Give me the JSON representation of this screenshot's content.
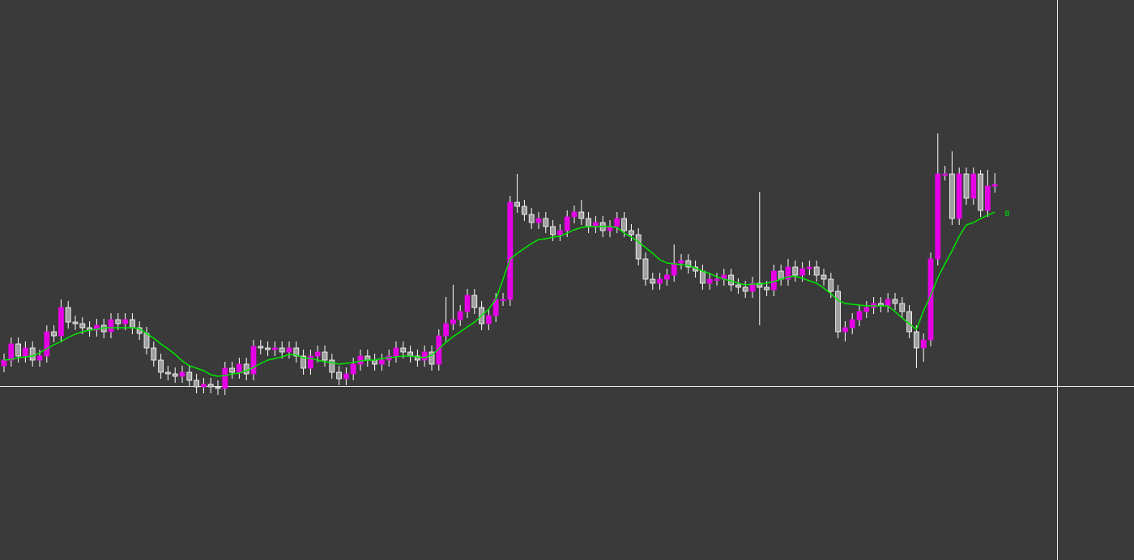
{
  "chart_data": {
    "type": "candlestick",
    "ylim": [
      0,
      692
    ],
    "up_color": "#e600e6",
    "down_color": "#a0a0a0",
    "wick_color": "#ffffff",
    "open": [
      240,
      247,
      267,
      252,
      262,
      247,
      252,
      282,
      277,
      312,
      294,
      292,
      287,
      284,
      290,
      282,
      297,
      292,
      297,
      287,
      280,
      262,
      247,
      232,
      230,
      227,
      232,
      222,
      214,
      217,
      214,
      212,
      237,
      232,
      242,
      230,
      264,
      262,
      260,
      262,
      257,
      262,
      252,
      237,
      252,
      257,
      247,
      232,
      224,
      230,
      242,
      252,
      247,
      242,
      247,
      252,
      262,
      257,
      252,
      247,
      257,
      242,
      277,
      292,
      297,
      307,
      327,
      312,
      292,
      302,
      322,
      322,
      442,
      437,
      427,
      417,
      422,
      412,
      402,
      407,
      424,
      430,
      422,
      412,
      417,
      407,
      412,
      422,
      407,
      402,
      372,
      347,
      342,
      347,
      352,
      367,
      370,
      362,
      357,
      342,
      347,
      347,
      352,
      340,
      337,
      332,
      342,
      337,
      334,
      357,
      347,
      362,
      352,
      360,
      362,
      352,
      347,
      332,
      282,
      287,
      297,
      307,
      312,
      317,
      314,
      322,
      317,
      307,
      282,
      262,
      272,
      372,
      477,
      477,
      422,
      477,
      447,
      477,
      432,
      462
    ],
    "high": [
      255,
      275,
      275,
      270,
      270,
      260,
      290,
      290,
      322,
      320,
      302,
      300,
      295,
      298,
      298,
      305,
      305,
      305,
      305,
      295,
      288,
      270,
      255,
      240,
      238,
      240,
      240,
      230,
      225,
      225,
      222,
      245,
      245,
      250,
      250,
      272,
      272,
      270,
      270,
      270,
      270,
      270,
      260,
      260,
      265,
      265,
      255,
      240,
      238,
      250,
      260,
      260,
      255,
      255,
      260,
      270,
      270,
      265,
      260,
      265,
      265,
      285,
      325,
      340,
      315,
      335,
      335,
      320,
      310,
      330,
      330,
      450,
      477,
      445,
      435,
      430,
      430,
      420,
      415,
      432,
      438,
      445,
      430,
      425,
      425,
      420,
      430,
      430,
      415,
      410,
      380,
      355,
      355,
      360,
      390,
      378,
      378,
      370,
      365,
      355,
      355,
      360,
      360,
      348,
      345,
      350,
      455,
      345,
      365,
      365,
      372,
      370,
      368,
      370,
      370,
      360,
      355,
      340,
      295,
      305,
      315,
      320,
      325,
      325,
      330,
      330,
      325,
      315,
      290,
      280,
      380,
      527,
      487,
      505,
      485,
      485,
      485,
      482,
      482,
      478
    ],
    "low": [
      232,
      239,
      244,
      244,
      239,
      239,
      244,
      269,
      269,
      286,
      284,
      279,
      276,
      276,
      274,
      274,
      284,
      284,
      279,
      272,
      254,
      239,
      224,
      222,
      219,
      219,
      214,
      206,
      206,
      206,
      204,
      204,
      224,
      224,
      222,
      222,
      254,
      252,
      252,
      249,
      249,
      244,
      229,
      229,
      244,
      239,
      224,
      216,
      216,
      222,
      234,
      239,
      234,
      234,
      239,
      244,
      249,
      244,
      239,
      239,
      234,
      234,
      269,
      284,
      289,
      299,
      304,
      284,
      284,
      294,
      314,
      314,
      429,
      419,
      409,
      409,
      404,
      394,
      394,
      399,
      416,
      414,
      404,
      404,
      399,
      399,
      404,
      399,
      394,
      364,
      339,
      334,
      334,
      339,
      344,
      359,
      354,
      349,
      334,
      334,
      339,
      339,
      332,
      329,
      324,
      324,
      290,
      326,
      326,
      339,
      339,
      344,
      344,
      352,
      344,
      339,
      324,
      274,
      270,
      279,
      289,
      299,
      304,
      306,
      306,
      309,
      299,
      274,
      237,
      245,
      264,
      364,
      469,
      414,
      414,
      439,
      439,
      424,
      424,
      454
    ],
    "close": [
      247,
      267,
      252,
      262,
      247,
      252,
      282,
      277,
      312,
      294,
      292,
      287,
      284,
      290,
      282,
      297,
      292,
      297,
      287,
      280,
      262,
      247,
      232,
      230,
      227,
      232,
      222,
      214,
      217,
      214,
      212,
      237,
      232,
      242,
      230,
      264,
      262,
      260,
      262,
      257,
      262,
      252,
      237,
      252,
      257,
      247,
      232,
      224,
      230,
      242,
      252,
      247,
      242,
      247,
      252,
      262,
      257,
      252,
      247,
      257,
      242,
      277,
      292,
      297,
      307,
      327,
      312,
      292,
      302,
      322,
      322,
      442,
      437,
      427,
      417,
      422,
      412,
      402,
      407,
      424,
      430,
      422,
      412,
      417,
      407,
      412,
      422,
      407,
      402,
      372,
      347,
      342,
      347,
      352,
      367,
      370,
      362,
      357,
      342,
      347,
      347,
      352,
      340,
      337,
      332,
      342,
      337,
      334,
      357,
      347,
      362,
      352,
      360,
      362,
      352,
      347,
      332,
      282,
      287,
      297,
      307,
      312,
      317,
      314,
      322,
      317,
      307,
      282,
      262,
      272,
      372,
      477,
      477,
      422,
      477,
      447,
      477,
      432,
      462,
      464
    ],
    "ma": {
      "name": "8",
      "color": "#00e600",
      "values": [
        247,
        248,
        250,
        251,
        252,
        256,
        261,
        266,
        270,
        275,
        279,
        282,
        284,
        285,
        287,
        287,
        287,
        287,
        287,
        286,
        280,
        274,
        267,
        261,
        254,
        246,
        240,
        237,
        234,
        229,
        227,
        228,
        230,
        231,
        234,
        238,
        243,
        247,
        249,
        251,
        254,
        253,
        250,
        249,
        247,
        245,
        244,
        242,
        243,
        244,
        246,
        247,
        247,
        249,
        250,
        251,
        252,
        252,
        251,
        250,
        253,
        261,
        269,
        276,
        282,
        288,
        294,
        302,
        310,
        322,
        347,
        372,
        379,
        385,
        391,
        396,
        397,
        399,
        400,
        404,
        408,
        411,
        412,
        412,
        412,
        412,
        411,
        404,
        399,
        393,
        386,
        379,
        371,
        367,
        366,
        365,
        364,
        361,
        357,
        354,
        350,
        347,
        345,
        342,
        340,
        341,
        341,
        342,
        344,
        347,
        350,
        351,
        348,
        345,
        342,
        336,
        329,
        321,
        317,
        316,
        315,
        314,
        314,
        314,
        314,
        307,
        299,
        292,
        285,
        308,
        327,
        349,
        366,
        382,
        400,
        414,
        417,
        422,
        426,
        430
      ]
    }
  }
}
